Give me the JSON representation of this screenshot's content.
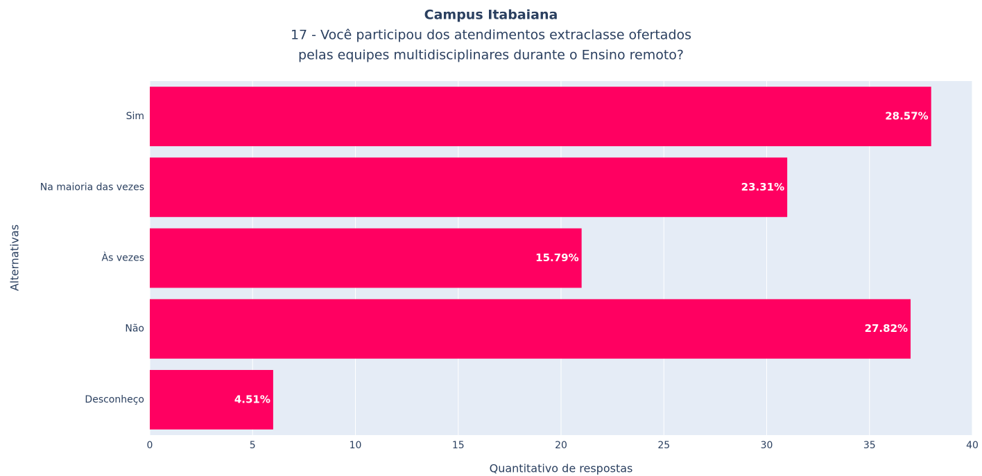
{
  "chart_data": {
    "type": "hbar",
    "title": "Campus Itabaiana",
    "subtitle": [
      "17 - Você participou dos atendimentos extraclasse ofertados",
      "pelas equipes multidisciplinares durante o Ensino remoto?"
    ],
    "x_label": "Quantitativo de respostas",
    "y_label": "Alternativas",
    "categories": [
      "Sim",
      "Na maioria das vezes",
      "Às vezes",
      "Não",
      "Desconheço"
    ],
    "values": [
      38,
      31,
      21,
      37,
      6
    ],
    "value_labels": [
      "28.57%",
      "23.31%",
      "15.79%",
      "27.82%",
      "4.51%"
    ],
    "color": "#ff0061",
    "xlim": [
      0,
      40
    ],
    "xticks": [
      0,
      5,
      10,
      15,
      20,
      25,
      30,
      35,
      40
    ],
    "grid": true
  }
}
